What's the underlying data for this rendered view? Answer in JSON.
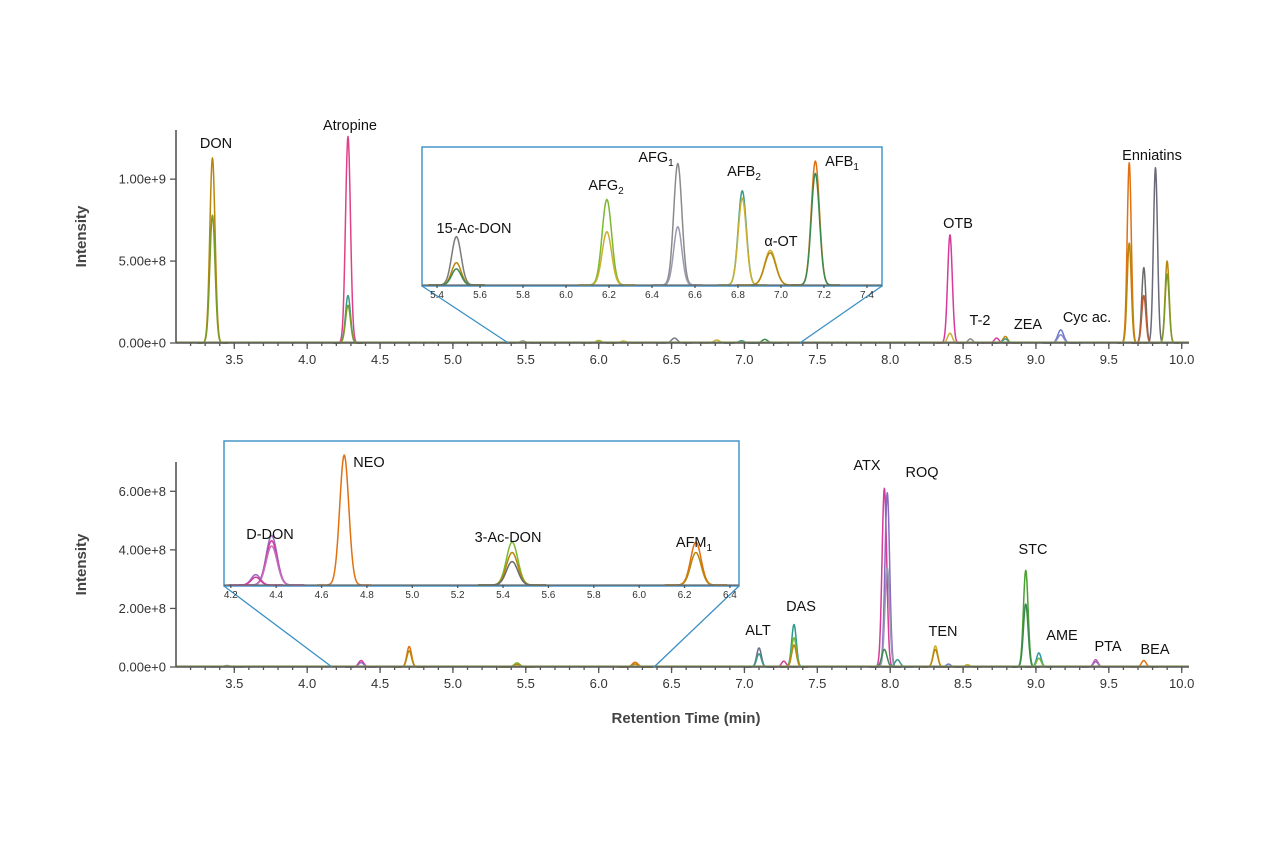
{
  "chart_data": [
    {
      "type": "line",
      "id": "top",
      "xlabel": "",
      "ylabel": "Intensity",
      "xlim": [
        3.1,
        10.05
      ],
      "ylim": [
        0,
        1300000000
      ],
      "xticks": [
        "3.5",
        "4.0",
        "4.5",
        "5.0",
        "5.5",
        "6.0",
        "6.5",
        "7.0",
        "7.5",
        "8.0",
        "8.5",
        "9.0",
        "9.5",
        "10.0"
      ],
      "yticks": [
        "0.00e+0",
        "5.00e+8",
        "1.00e+9"
      ],
      "peaks": [
        {
          "label": "DON",
          "rt": 3.35,
          "w": 0.018,
          "h": [
            1130000000,
            780000000
          ],
          "colors": [
            "#b8860b",
            "#7a9a28"
          ]
        },
        {
          "label": "Atropine",
          "rt": 4.28,
          "w": 0.017,
          "h": [
            1260000000,
            290000000,
            230000000
          ],
          "colors": [
            "#e0408a",
            "#3a9a8a",
            "#7a9a28"
          ]
        },
        {
          "label": "",
          "rt": 5.48,
          "w": 0.02,
          "h": [
            12000000
          ],
          "colors": [
            "#8a8a8a"
          ]
        },
        {
          "label": "",
          "rt": 6.0,
          "w": 0.02,
          "h": [
            15000000
          ],
          "colors": [
            "#a0b020"
          ]
        },
        {
          "label": "",
          "rt": 6.17,
          "w": 0.02,
          "h": [
            12000000
          ],
          "colors": [
            "#c9b030"
          ]
        },
        {
          "label": "",
          "rt": 6.52,
          "w": 0.02,
          "h": [
            30000000
          ],
          "colors": [
            "#7a7a8a"
          ]
        },
        {
          "label": "",
          "rt": 6.81,
          "w": 0.02,
          "h": [
            18000000
          ],
          "colors": [
            "#c9b030"
          ]
        },
        {
          "label": "",
          "rt": 6.98,
          "w": 0.02,
          "h": [
            14000000
          ],
          "colors": [
            "#3a9a8a"
          ]
        },
        {
          "label": "",
          "rt": 7.14,
          "w": 0.02,
          "h": [
            22000000
          ],
          "colors": [
            "#3a8a50"
          ]
        },
        {
          "label": "OTB",
          "rt": 8.41,
          "w": 0.016,
          "h": [
            660000000,
            60000000
          ],
          "colors": [
            "#d63a9a",
            "#c9b030"
          ]
        },
        {
          "label": "T-2",
          "rt": 8.55,
          "w": 0.016,
          "h": [
            25000000
          ],
          "colors": [
            "#8a8a8a"
          ]
        },
        {
          "label": "",
          "rt": 8.73,
          "w": 0.016,
          "h": [
            30000000
          ],
          "colors": [
            "#d63a9a"
          ]
        },
        {
          "label": "ZEA",
          "rt": 8.79,
          "w": 0.016,
          "h": [
            40000000,
            25000000
          ],
          "colors": [
            "#b8860b",
            "#3a9a8a"
          ]
        },
        {
          "label": "Cyc ac.",
          "rt": 9.17,
          "w": 0.02,
          "h": [
            80000000,
            50000000
          ],
          "colors": [
            "#6a7ad0",
            "#8a8ac0"
          ]
        },
        {
          "label": "Enniatins",
          "rt": 9.64,
          "w": 0.014,
          "h": [
            1100000000,
            610000000
          ],
          "colors": [
            "#e07010",
            "#b8860b"
          ]
        },
        {
          "label": "",
          "rt": 9.74,
          "w": 0.014,
          "h": [
            460000000,
            290000000
          ],
          "colors": [
            "#6a6a6a",
            "#c05a30"
          ]
        },
        {
          "label": "",
          "rt": 9.82,
          "w": 0.014,
          "h": [
            1070000000
          ],
          "colors": [
            "#6a6a7a"
          ]
        },
        {
          "label": "",
          "rt": 9.9,
          "w": 0.014,
          "h": [
            500000000,
            420000000
          ],
          "colors": [
            "#b8860b",
            "#7a9a28"
          ]
        }
      ],
      "inset": {
        "xlim": [
          5.33,
          7.47
        ],
        "xticks": [
          "5.4",
          "5.6",
          "5.8",
          "6.0",
          "6.2",
          "6.4",
          "6.6",
          "6.8",
          "7.0",
          "7.2",
          "7.4"
        ],
        "zoom_from": [
          5.38,
          7.38
        ],
        "peaks": [
          {
            "label": "15-Ac-DON",
            "rt": 5.49,
            "w": 0.022,
            "h": [
              0.39,
              0.18,
              0.13
            ],
            "colors": [
              "#7a7a7a",
              "#b8860b",
              "#3a8a50"
            ]
          },
          {
            "label": "AFG",
            "sub": "2",
            "rt": 6.19,
            "w": 0.022,
            "h": [
              0.69,
              0.43
            ],
            "colors": [
              "#7ab830",
              "#c9b030"
            ]
          },
          {
            "label": "AFG",
            "sub": "1",
            "rt": 6.52,
            "w": 0.019,
            "h": [
              0.98,
              0.47
            ],
            "colors": [
              "#8a8a8a",
              "#9a9ab0"
            ]
          },
          {
            "label": "AFB",
            "sub": "2",
            "rt": 6.82,
            "w": 0.019,
            "h": [
              0.76,
              0.7
            ],
            "colors": [
              "#3a9a8a",
              "#c9b030"
            ]
          },
          {
            "label": "α-OT",
            "rt": 6.95,
            "w": 0.026,
            "h": [
              0.28,
              0.26
            ],
            "colors": [
              "#c9b030",
              "#b8860b"
            ]
          },
          {
            "label": "AFB",
            "sub": "1",
            "rt": 7.16,
            "w": 0.019,
            "h": [
              1.0,
              0.9
            ],
            "colors": [
              "#e07010",
              "#3a8a50"
            ]
          }
        ]
      }
    },
    {
      "type": "line",
      "id": "bottom",
      "xlabel": "Retention Time (min)",
      "ylabel": "Intensity",
      "xlim": [
        3.1,
        10.05
      ],
      "ylim": [
        0,
        700000000
      ],
      "xticks": [
        "3.5",
        "4.0",
        "4.5",
        "5.0",
        "5.5",
        "6.0",
        "6.5",
        "7.0",
        "7.5",
        "8.0",
        "8.5",
        "9.0",
        "9.5",
        "10.0"
      ],
      "yticks": [
        "0.00e+0",
        "2.00e+8",
        "4.00e+8",
        "6.00e+8"
      ],
      "peaks": [
        {
          "label": "",
          "rt": 3.45,
          "w": 0.02,
          "h": [
            5000000
          ],
          "colors": [
            "#8a8a8a"
          ]
        },
        {
          "label": "",
          "rt": 4.37,
          "w": 0.018,
          "h": [
            22000000,
            15000000
          ],
          "colors": [
            "#d63a9a",
            "#9a6ac0"
          ]
        },
        {
          "label": "",
          "rt": 4.7,
          "w": 0.016,
          "h": [
            70000000,
            55000000
          ],
          "colors": [
            "#e07010",
            "#b8860b"
          ]
        },
        {
          "label": "",
          "rt": 5.44,
          "w": 0.02,
          "h": [
            14000000,
            9000000
          ],
          "colors": [
            "#7ab830",
            "#b8860b"
          ]
        },
        {
          "label": "",
          "rt": 6.25,
          "w": 0.02,
          "h": [
            16000000,
            10000000
          ],
          "colors": [
            "#e07010",
            "#b8860b"
          ]
        },
        {
          "label": "ALT",
          "rt": 7.1,
          "w": 0.016,
          "h": [
            65000000,
            45000000
          ],
          "colors": [
            "#6a6a8a",
            "#3a9a8a"
          ]
        },
        {
          "label": "",
          "rt": 7.27,
          "w": 0.016,
          "h": [
            20000000
          ],
          "colors": [
            "#d63a9a"
          ]
        },
        {
          "label": "DAS",
          "rt": 7.34,
          "w": 0.016,
          "h": [
            145000000,
            100000000,
            75000000
          ],
          "colors": [
            "#2a9a8a",
            "#7ab830",
            "#b8860b"
          ]
        },
        {
          "label": "ATX",
          "rt": 7.96,
          "w": 0.016,
          "h": [
            610000000
          ],
          "colors": [
            "#d63a9a"
          ]
        },
        {
          "label": "ROQ",
          "rt": 7.98,
          "w": 0.016,
          "h": [
            595000000,
            340000000
          ],
          "colors": [
            "#8a6ac0",
            "#9a9ab0"
          ]
        },
        {
          "label": "",
          "rt": 7.96,
          "w": 0.018,
          "h": [
            60000000
          ],
          "colors": [
            "#3a8a50"
          ]
        },
        {
          "label": "",
          "rt": 8.05,
          "w": 0.018,
          "h": [
            25000000
          ],
          "colors": [
            "#3a9a8a"
          ]
        },
        {
          "label": "TEN",
          "rt": 8.31,
          "w": 0.016,
          "h": [
            72000000,
            60000000
          ],
          "colors": [
            "#c9b030",
            "#b8860b"
          ]
        },
        {
          "label": "",
          "rt": 8.4,
          "w": 0.016,
          "h": [
            10000000
          ],
          "colors": [
            "#6a7ad0"
          ]
        },
        {
          "label": "",
          "rt": 8.53,
          "w": 0.016,
          "h": [
            8000000
          ],
          "colors": [
            "#c9b030"
          ]
        },
        {
          "label": "STC",
          "rt": 8.93,
          "w": 0.016,
          "h": [
            330000000,
            215000000
          ],
          "colors": [
            "#4aa030",
            "#3a8a50"
          ]
        },
        {
          "label": "AME",
          "rt": 9.02,
          "w": 0.016,
          "h": [
            48000000,
            30000000
          ],
          "colors": [
            "#2a9aaa",
            "#7ab830"
          ]
        },
        {
          "label": "PTA",
          "rt": 9.41,
          "w": 0.016,
          "h": [
            25000000,
            18000000
          ],
          "colors": [
            "#c05ab0",
            "#9a6ac0"
          ]
        },
        {
          "label": "BEA",
          "rt": 9.74,
          "w": 0.016,
          "h": [
            22000000
          ],
          "colors": [
            "#e07010"
          ]
        }
      ],
      "inset": {
        "xlim": [
          4.17,
          6.44
        ],
        "xticks": [
          "4.2",
          "4.4",
          "4.6",
          "4.8",
          "5.0",
          "5.2",
          "5.4",
          "5.6",
          "5.8",
          "6.0",
          "6.2",
          "6.4"
        ],
        "zoom_from": [
          4.17,
          6.38
        ],
        "peaks": [
          {
            "label": "D-DON",
            "rt": 4.38,
            "w": 0.024,
            "h": [
              0.38,
              0.34,
              0.3
            ],
            "colors": [
              "#9a6ac0",
              "#d63a9a",
              "#c070c0"
            ]
          },
          {
            "label": "",
            "rt": 4.31,
            "w": 0.02,
            "h": [
              0.08,
              0.06
            ],
            "colors": [
              "#9a6ac0",
              "#d63a9a"
            ]
          },
          {
            "label": "NEO",
            "rt": 4.7,
            "w": 0.02,
            "h": [
              1.0
            ],
            "colors": [
              "#e07010"
            ]
          },
          {
            "label": "3-Ac-DON",
            "rt": 5.44,
            "w": 0.025,
            "h": [
              0.33,
              0.25,
              0.18
            ],
            "colors": [
              "#7ab830",
              "#b8860b",
              "#6a6a6a"
            ]
          },
          {
            "label": "AFM",
            "sub": "1",
            "rt": 6.25,
            "w": 0.023,
            "h": [
              0.33,
              0.25
            ],
            "colors": [
              "#e07010",
              "#b8860b"
            ]
          }
        ]
      }
    }
  ]
}
